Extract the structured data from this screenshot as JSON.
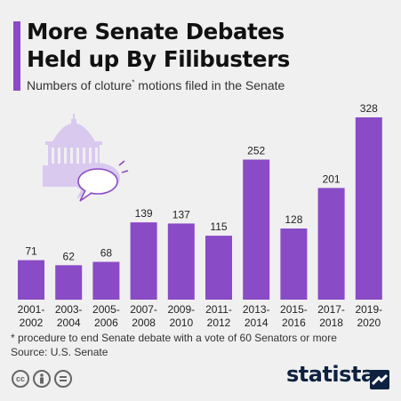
{
  "header": {
    "title_line1": "More Senate Debates",
    "title_line2": "Held up By Filibusters",
    "subtitle_pre": "Numbers of cloture",
    "subtitle_star": "*",
    "subtitle_post": " motions filed in the Senate"
  },
  "chart_data": {
    "type": "bar",
    "categories": [
      "2001-2002",
      "2003-2004",
      "2005-2006",
      "2007-2008",
      "2009-2010",
      "2011-2012",
      "2013-2014",
      "2015-2016",
      "2017-2018",
      "2019-2020"
    ],
    "category_lines": [
      [
        "2001-",
        "2002"
      ],
      [
        "2003-",
        "2004"
      ],
      [
        "2005-",
        "2006"
      ],
      [
        "2007-",
        "2008"
      ],
      [
        "2009-",
        "2010"
      ],
      [
        "2011-",
        "2012"
      ],
      [
        "2013-",
        "2014"
      ],
      [
        "2015-",
        "2016"
      ],
      [
        "2017-",
        "2018"
      ],
      [
        "2019-",
        "2020"
      ]
    ],
    "values": [
      71,
      62,
      68,
      139,
      137,
      115,
      252,
      128,
      201,
      328
    ],
    "title": "More Senate Debates Held up By Filibusters",
    "xlabel": "",
    "ylabel": "",
    "ylim": [
      0,
      328
    ],
    "grid": false,
    "data_labels": true,
    "bar_color": "#8a4bc7"
  },
  "footer": {
    "footnote": "* procedure to end Senate debate with a vote of 60 Senators or more",
    "source": "Source: U.S. Senate",
    "brand": "statista",
    "license_icons": [
      "cc-icon",
      "attribution-icon",
      "no-derivatives-icon"
    ]
  },
  "colors": {
    "accent": "#8a4bc7",
    "illustration": "#d9c9ef",
    "brand": "#0e2240"
  },
  "icons": [
    "capitol-dome-icon",
    "speech-bubbles-icon"
  ]
}
